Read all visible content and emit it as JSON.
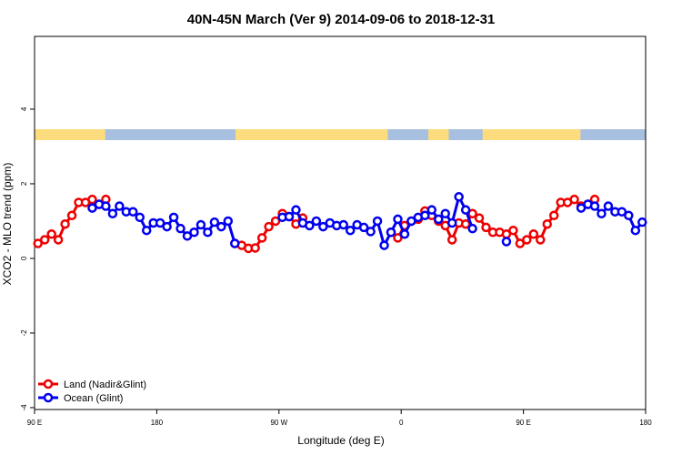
{
  "chart_data": {
    "type": "line",
    "title": "40N-45N March (Ver 9)   2014-09-06 to 2018-12-31",
    "x_label": "Longitude (deg E)",
    "y_label": "XCO2 - MLO trend (ppm)",
    "xlim": [
      90,
      540
    ],
    "ylim": [
      -4.05,
      5.95
    ],
    "xticks": [
      {
        "value": 90,
        "label": "90 E"
      },
      180,
      {
        "value": 270,
        "label": "90 W"
      },
      {
        "value": 360,
        "label": "0"
      },
      {
        "value": 450,
        "label": "90 E"
      },
      {
        "value": 540,
        "label": "180"
      }
    ],
    "yticks": [
      -4,
      -2,
      0,
      2,
      4
    ],
    "legend": "bottom-left",
    "land_color": "#fcdc7c",
    "ocean_color": "#a8c0e0",
    "land_ranges": [
      [
        90,
        142
      ],
      [
        238,
        350
      ],
      [
        380,
        395
      ],
      [
        420,
        492
      ]
    ],
    "x": [
      92.5,
      97.5,
      102.5,
      107.5,
      112.5,
      117.5,
      122.5,
      127.5,
      132.5,
      137.5,
      142.5,
      147.5,
      152.5,
      157.5,
      162.5,
      167.5,
      172.5,
      177.5,
      182.5,
      187.5,
      192.5,
      197.5,
      202.5,
      207.5,
      212.5,
      217.5,
      222.5,
      227.5,
      232.5,
      237.5,
      242.5,
      247.5,
      252.5,
      257.5,
      262.5,
      267.5,
      272.5,
      277.5,
      282.5,
      287.5,
      292.5,
      297.5,
      302.5,
      307.5,
      312.5,
      317.5,
      322.5,
      327.5,
      332.5,
      337.5,
      342.5,
      347.5,
      352.5,
      357.5,
      362.5,
      367.5,
      372.5,
      377.5,
      382.5,
      387.5,
      392.5,
      397.5,
      402.5,
      407.5,
      412.5,
      417.5,
      422.5,
      427.5,
      432.5,
      437.5,
      442.5,
      447.5,
      452.5,
      457.5,
      462.5,
      467.5,
      472.5,
      477.5,
      482.5,
      487.5,
      492.5,
      497.5,
      502.5,
      507.5,
      512.5,
      517.5,
      522.5,
      527.5,
      532.5,
      537.5
    ],
    "series": [
      {
        "name": "Land (Nadir&Glint)",
        "color": "#ee0000",
        "values": [
          0.4,
          0.5,
          0.65,
          0.5,
          0.92,
          1.15,
          1.5,
          1.5,
          1.58,
          1.45,
          1.58,
          null,
          null,
          null,
          null,
          null,
          null,
          null,
          null,
          null,
          null,
          null,
          null,
          null,
          null,
          null,
          null,
          null,
          null,
          0.4,
          0.35,
          0.27,
          0.28,
          0.55,
          0.85,
          1.0,
          1.2,
          1.12,
          0.92,
          1.08,
          null,
          null,
          null,
          null,
          null,
          null,
          null,
          null,
          null,
          null,
          null,
          null,
          0.7,
          0.55,
          0.88,
          1.0,
          1.05,
          1.27,
          1.15,
          1.0,
          0.88,
          0.5,
          0.95,
          0.92,
          1.2,
          1.08,
          0.83,
          0.7,
          0.7,
          0.65,
          0.75,
          0.4,
          0.5,
          0.65,
          0.5,
          0.92,
          1.15,
          1.5,
          1.5,
          1.58,
          1.4,
          1.45,
          1.58,
          null,
          null,
          null,
          null,
          null,
          null,
          null
        ]
      },
      {
        "name": "Ocean (Glint)",
        "color": "#0000ee",
        "values": [
          null,
          null,
          null,
          null,
          null,
          null,
          null,
          null,
          1.35,
          1.45,
          1.4,
          1.2,
          1.4,
          1.25,
          1.25,
          1.1,
          0.75,
          0.95,
          0.95,
          0.85,
          1.1,
          0.8,
          0.6,
          0.7,
          0.9,
          0.7,
          0.97,
          0.85,
          1.0,
          0.4,
          null,
          null,
          null,
          null,
          null,
          null,
          1.1,
          1.12,
          1.3,
          0.95,
          0.88,
          1.0,
          0.85,
          0.95,
          0.88,
          0.9,
          0.75,
          0.9,
          0.83,
          0.72,
          1.0,
          0.35,
          0.7,
          1.05,
          0.65,
          1.0,
          1.1,
          1.15,
          1.3,
          1.05,
          1.2,
          0.95,
          1.65,
          1.3,
          0.8,
          null,
          null,
          null,
          null,
          0.45,
          null,
          null,
          null,
          null,
          null,
          null,
          null,
          null,
          null,
          null,
          1.35,
          1.45,
          1.4,
          1.2,
          1.4,
          1.25,
          1.25,
          1.15,
          0.75,
          0.97
        ]
      }
    ]
  }
}
